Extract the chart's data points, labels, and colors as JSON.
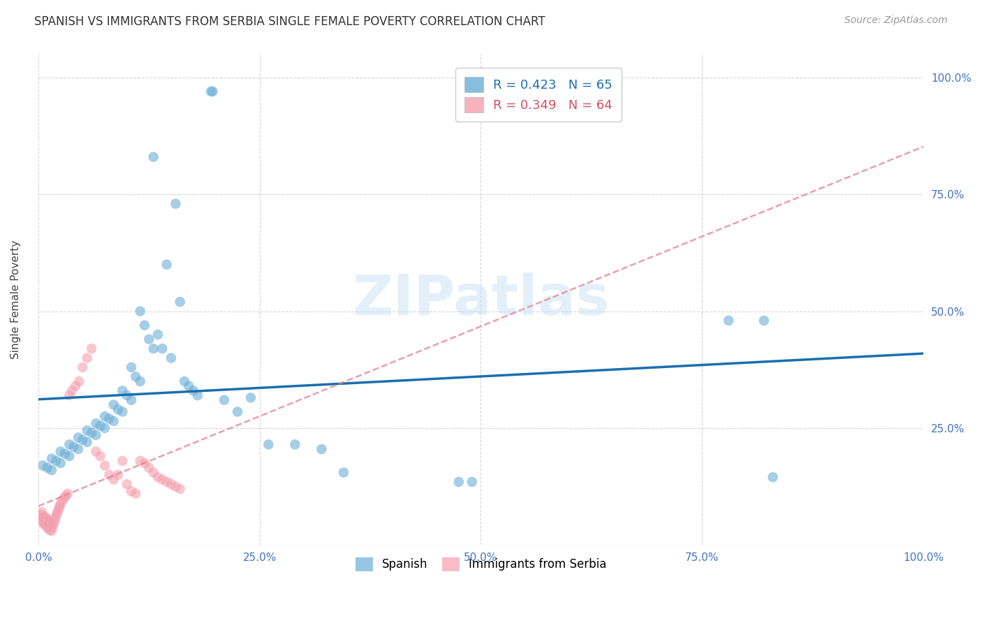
{
  "title": "SPANISH VS IMMIGRANTS FROM SERBIA SINGLE FEMALE POVERTY CORRELATION CHART",
  "source": "Source: ZipAtlas.com",
  "ylabel": "Single Female Poverty",
  "watermark": "ZIPatlas",
  "color_spanish": "#6baed6",
  "color_serbia": "#f4a0b0",
  "color_line_spanish": "#1a6faf",
  "color_line_serbia": "#e08090",
  "background": "#ffffff",
  "grid_color": "#cccccc",
  "spanish_x": [
    0.195,
    0.197,
    0.13,
    0.155,
    0.145,
    0.16,
    0.135,
    0.14,
    0.15,
    0.115,
    0.12,
    0.125,
    0.13,
    0.105,
    0.11,
    0.115,
    0.095,
    0.1,
    0.105,
    0.085,
    0.09,
    0.095,
    0.075,
    0.08,
    0.085,
    0.065,
    0.07,
    0.075,
    0.055,
    0.06,
    0.065,
    0.045,
    0.05,
    0.055,
    0.035,
    0.04,
    0.045,
    0.025,
    0.03,
    0.035,
    0.015,
    0.02,
    0.025,
    0.005,
    0.01,
    0.015,
    0.165,
    0.17,
    0.175,
    0.18,
    0.21,
    0.225,
    0.24,
    0.26,
    0.29,
    0.32,
    0.345,
    0.475,
    0.49,
    0.78,
    0.82,
    0.83
  ],
  "spanish_y": [
    0.97,
    0.97,
    0.83,
    0.73,
    0.6,
    0.52,
    0.45,
    0.42,
    0.4,
    0.5,
    0.47,
    0.44,
    0.42,
    0.38,
    0.36,
    0.35,
    0.33,
    0.32,
    0.31,
    0.3,
    0.29,
    0.285,
    0.275,
    0.27,
    0.265,
    0.26,
    0.255,
    0.25,
    0.245,
    0.24,
    0.235,
    0.23,
    0.225,
    0.22,
    0.215,
    0.21,
    0.205,
    0.2,
    0.195,
    0.19,
    0.185,
    0.18,
    0.175,
    0.17,
    0.165,
    0.16,
    0.35,
    0.34,
    0.33,
    0.32,
    0.31,
    0.285,
    0.315,
    0.215,
    0.215,
    0.205,
    0.155,
    0.135,
    0.135,
    0.48,
    0.48,
    0.145
  ],
  "serbia_x": [
    0.003,
    0.004,
    0.004,
    0.005,
    0.005,
    0.006,
    0.006,
    0.007,
    0.007,
    0.008,
    0.008,
    0.009,
    0.009,
    0.01,
    0.01,
    0.011,
    0.011,
    0.012,
    0.012,
    0.013,
    0.013,
    0.014,
    0.015,
    0.016,
    0.017,
    0.018,
    0.019,
    0.02,
    0.021,
    0.022,
    0.023,
    0.024,
    0.025,
    0.027,
    0.029,
    0.031,
    0.033,
    0.035,
    0.038,
    0.042,
    0.046,
    0.05,
    0.055,
    0.06,
    0.065,
    0.07,
    0.075,
    0.08,
    0.085,
    0.09,
    0.095,
    0.1,
    0.105,
    0.11,
    0.115,
    0.12,
    0.125,
    0.13,
    0.135,
    0.14,
    0.145,
    0.15,
    0.155,
    0.16
  ],
  "serbia_y": [
    0.065,
    0.07,
    0.055,
    0.06,
    0.05,
    0.055,
    0.045,
    0.06,
    0.048,
    0.052,
    0.042,
    0.058,
    0.045,
    0.055,
    0.04,
    0.048,
    0.035,
    0.05,
    0.038,
    0.048,
    0.032,
    0.042,
    0.03,
    0.038,
    0.044,
    0.05,
    0.056,
    0.062,
    0.068,
    0.072,
    0.078,
    0.082,
    0.088,
    0.095,
    0.1,
    0.105,
    0.11,
    0.32,
    0.33,
    0.34,
    0.35,
    0.38,
    0.4,
    0.42,
    0.2,
    0.19,
    0.17,
    0.15,
    0.14,
    0.15,
    0.18,
    0.13,
    0.115,
    0.11,
    0.18,
    0.175,
    0.165,
    0.155,
    0.145,
    0.14,
    0.135,
    0.13,
    0.125,
    0.12
  ],
  "xlim": [
    0.0,
    1.0
  ],
  "ylim": [
    0.0,
    1.05
  ],
  "xticks": [
    0.0,
    0.25,
    0.5,
    0.75,
    1.0
  ],
  "xtick_labels": [
    "0.0%",
    "25.0%",
    "50.0%",
    "75.0%",
    "100.0%"
  ],
  "ytick_positions": [
    0.25,
    0.5,
    0.75,
    1.0
  ],
  "ytick_labels": [
    "25.0%",
    "50.0%",
    "75.0%",
    "100.0%"
  ],
  "title_fontsize": 12,
  "label_fontsize": 11,
  "tick_fontsize": 11,
  "source_fontsize": 10
}
